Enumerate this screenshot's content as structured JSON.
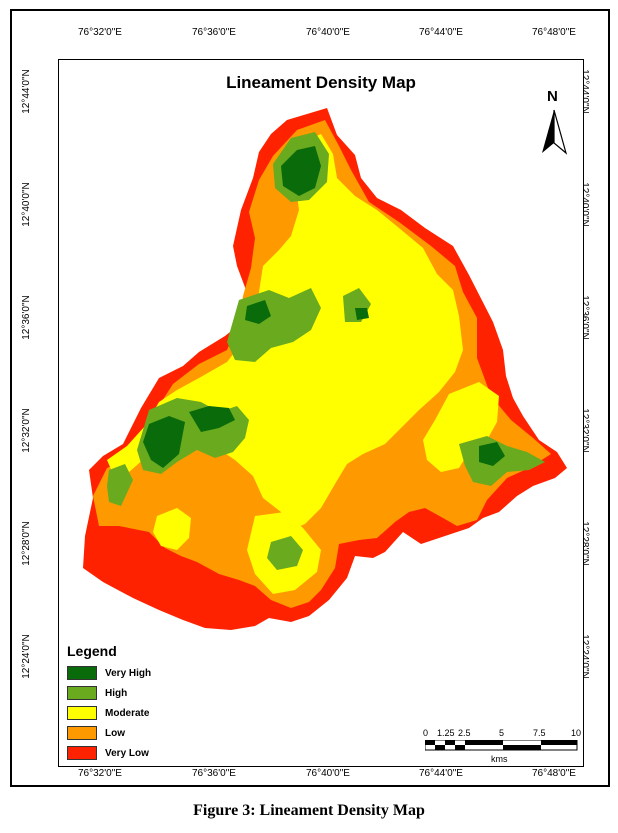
{
  "map": {
    "title": "Lineament Density Map",
    "north_label": "N",
    "longitude_ticks": [
      "76°32'0\"E",
      "76°36'0\"E",
      "76°40'0\"E",
      "76°44'0\"E",
      "76°48'0\"E"
    ],
    "latitude_ticks": [
      "12°44'0\"N",
      "12°40'0\"N",
      "12°36'0\"N",
      "12°32'0\"N",
      "12°28'0\"N",
      "12°24'0\"N"
    ]
  },
  "legend": {
    "title": "Legend",
    "items": [
      {
        "label": "Very High",
        "color": "#0a6b0a"
      },
      {
        "label": "High",
        "color": "#6aaa1e"
      },
      {
        "label": "Moderate",
        "color": "#ffff00"
      },
      {
        "label": "Low",
        "color": "#ff9900"
      },
      {
        "label": "Very Low",
        "color": "#ff2200"
      }
    ]
  },
  "scale": {
    "ticks": [
      "0",
      "1.25",
      "2.5",
      "5",
      "7.5",
      "10"
    ],
    "unit": "kms"
  },
  "caption": "Figure 3: Lineament Density Map"
}
